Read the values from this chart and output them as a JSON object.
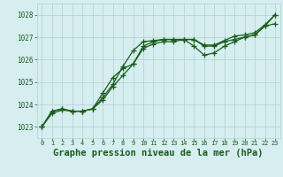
{
  "background_color": "#d6eef0",
  "grid_color": "#b0d0d0",
  "line_color": "#1a5c1a",
  "marker_color": "#1a5c1a",
  "title": "Graphe pression niveau de la mer (hPa)",
  "title_fontsize": 7.5,
  "xlim": [
    -0.5,
    23.5
  ],
  "ylim": [
    1022.5,
    1028.5
  ],
  "yticks": [
    1023,
    1024,
    1025,
    1026,
    1027,
    1028
  ],
  "xticks": [
    0,
    1,
    2,
    3,
    4,
    5,
    6,
    7,
    8,
    9,
    10,
    11,
    12,
    13,
    14,
    15,
    16,
    17,
    18,
    19,
    20,
    21,
    22,
    23
  ],
  "series1_x": [
    0,
    1,
    2,
    3,
    4,
    5,
    6,
    7,
    8,
    9,
    10,
    11,
    12,
    13,
    14,
    15,
    16,
    17,
    18,
    19,
    20,
    21,
    22,
    23
  ],
  "series1_y": [
    1023.0,
    1023.7,
    1023.8,
    1023.7,
    1023.7,
    1023.8,
    1024.2,
    1024.8,
    1025.3,
    1025.8,
    1026.6,
    1026.8,
    1026.9,
    1026.9,
    1026.9,
    1026.9,
    1026.6,
    1026.6,
    1026.8,
    1026.9,
    1027.0,
    1027.1,
    1027.5,
    1028.0
  ],
  "series2_x": [
    0,
    1,
    2,
    3,
    4,
    5,
    6,
    7,
    8,
    9,
    10,
    11,
    12,
    13,
    14,
    15,
    16,
    17,
    18,
    19,
    20,
    21,
    22,
    23
  ],
  "series2_y": [
    1023.0,
    1023.7,
    1023.8,
    1023.7,
    1023.7,
    1023.8,
    1024.5,
    1025.2,
    1025.6,
    1025.8,
    1026.5,
    1026.7,
    1026.8,
    1026.8,
    1026.9,
    1026.6,
    1026.2,
    1026.3,
    1026.6,
    1026.8,
    1027.0,
    1027.1,
    1027.5,
    1027.6
  ],
  "series3_x": [
    0,
    1,
    2,
    3,
    4,
    5,
    6,
    7,
    8,
    9,
    10,
    11,
    12,
    13,
    14,
    15,
    16,
    17,
    18,
    19,
    20,
    21,
    22,
    23
  ],
  "series3_y": [
    1023.0,
    1023.6,
    1023.75,
    1023.7,
    1023.7,
    1023.8,
    1024.3,
    1024.9,
    1025.7,
    1026.4,
    1026.8,
    1026.85,
    1026.9,
    1026.9,
    1026.9,
    1026.9,
    1026.65,
    1026.65,
    1026.85,
    1027.05,
    1027.1,
    1027.2,
    1027.55,
    1028.0
  ]
}
